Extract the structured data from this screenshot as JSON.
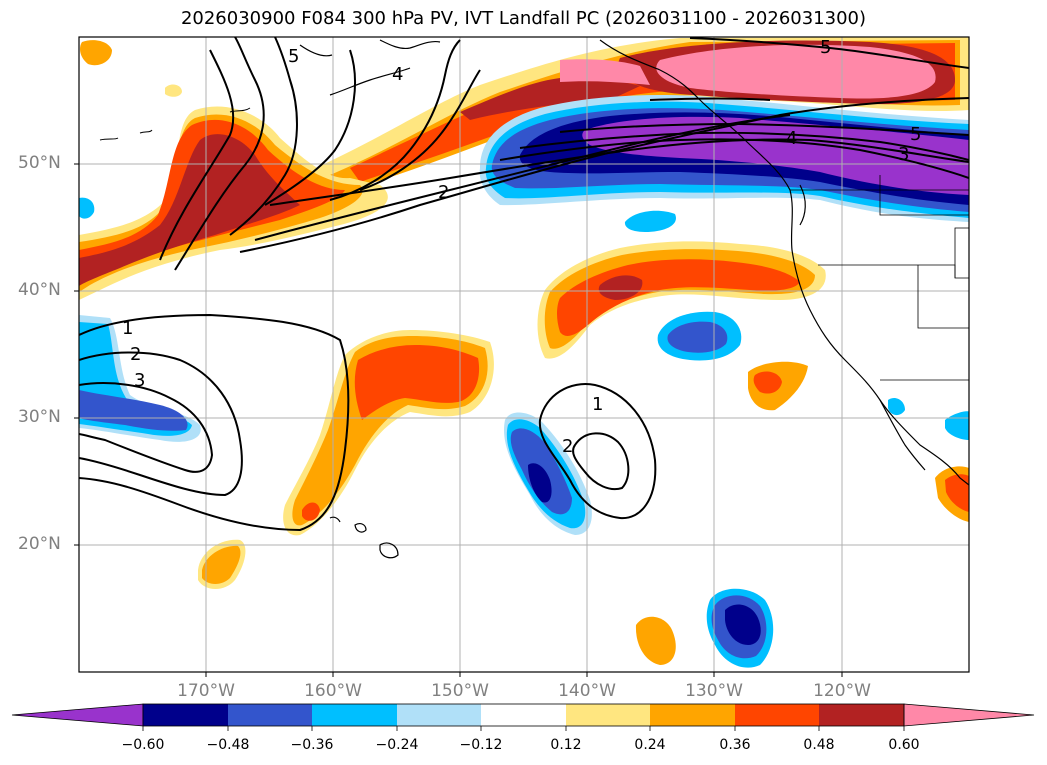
{
  "title": "2026030900 F084 300 hPa PV, IVT Landfall PC (2026031100 - 2026031300)",
  "map": {
    "region": "North Pacific and western North America",
    "lon_range": [
      -180,
      -110
    ],
    "lat_range": [
      10,
      60
    ],
    "grid": true
  },
  "lat_ticks": [
    {
      "value": 50,
      "label": "50°N"
    },
    {
      "value": 40,
      "label": "40°N"
    },
    {
      "value": 30,
      "label": "30°N"
    },
    {
      "value": 20,
      "label": "20°N"
    }
  ],
  "lon_ticks": [
    {
      "value": -170,
      "label": "170°W"
    },
    {
      "value": -160,
      "label": "160°W"
    },
    {
      "value": -150,
      "label": "150°W"
    },
    {
      "value": -140,
      "label": "140°W"
    },
    {
      "value": -130,
      "label": "130°W"
    },
    {
      "value": -120,
      "label": "120°W"
    }
  ],
  "colorbar": {
    "levels": [
      -0.6,
      -0.48,
      -0.36,
      -0.24,
      -0.12,
      0.12,
      0.24,
      0.36,
      0.48,
      0.6
    ],
    "labels": [
      "−0.60",
      "−0.48",
      "−0.36",
      "−0.24",
      "−0.12",
      "0.12",
      "0.24",
      "0.36",
      "0.48",
      "0.60"
    ],
    "colors": [
      "#9933cc",
      "#00008b",
      "#3355cc",
      "#00bfff",
      "#b0e0f8",
      "#ffffff",
      "#ffe680",
      "#ffa500",
      "#ff4500",
      "#b22222",
      "#ff88a8"
    ],
    "extend": "both"
  },
  "contour_labels": [
    "5",
    "4",
    "2",
    "1",
    "2",
    "3",
    "1",
    "2",
    "4",
    "3",
    "5",
    "5"
  ]
}
